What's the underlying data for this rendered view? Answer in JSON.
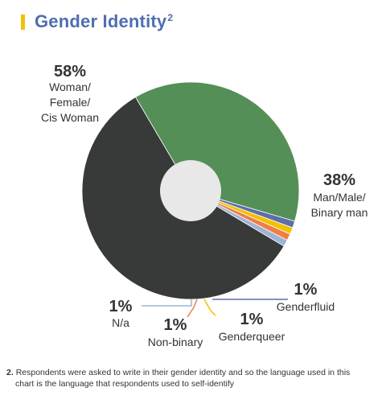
{
  "title": {
    "text": "Gender Identity",
    "superscript": "2",
    "accent_color": "#f2c100",
    "color": "#4e6fb0"
  },
  "chart_data": {
    "type": "pie",
    "title": "Gender Identity",
    "slices": [
      {
        "label": "Man/Male/ Binary man",
        "label_lines": [
          "Man/Male/",
          "Binary man"
        ],
        "pct_label": "38%",
        "value": 38,
        "color": "#548f57"
      },
      {
        "label": "Genderfluid",
        "label_lines": [
          "Genderfluid"
        ],
        "pct_label": "1%",
        "value": 1,
        "color": "#5b6fa8"
      },
      {
        "label": "Genderqueer",
        "label_lines": [
          "Genderqueer"
        ],
        "pct_label": "1%",
        "value": 1,
        "color": "#f2c100"
      },
      {
        "label": "Non-binary",
        "label_lines": [
          "Non-binary"
        ],
        "pct_label": "1%",
        "value": 1,
        "color": "#ee7f43"
      },
      {
        "label": "N/a",
        "label_lines": [
          "N/a"
        ],
        "pct_label": "1%",
        "value": 1,
        "color": "#9fb3d6"
      },
      {
        "label": "Woman/ Female/ Cis Woman",
        "label_lines": [
          "Woman/",
          "Female/",
          "Cis Woman"
        ],
        "pct_label": "58%",
        "value": 58,
        "color": "#383a39"
      }
    ],
    "center_hole_color": "#e8e8e8"
  },
  "footnote": {
    "number": "2.",
    "line1": "Respondents were asked to write in their gender identity and so the language used in this",
    "line2": "chart is the language that respondents used to self-identify"
  }
}
